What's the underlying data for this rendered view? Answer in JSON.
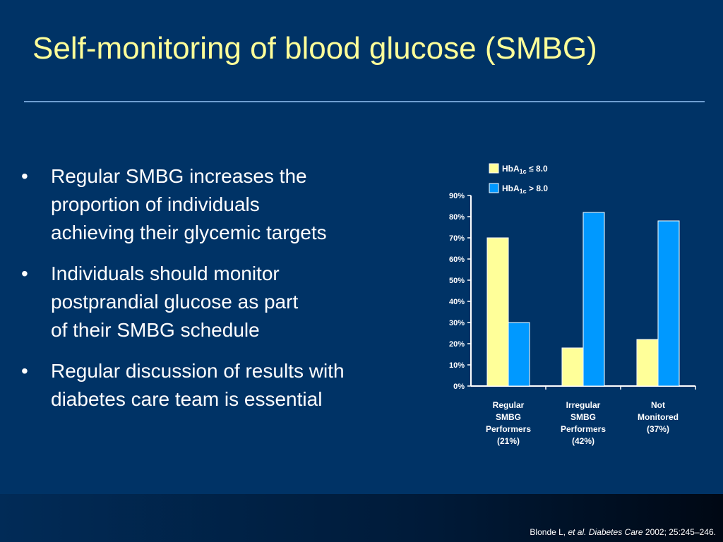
{
  "slide": {
    "title": "Self-monitoring of blood glucose (SMBG)",
    "bullets": [
      {
        "lines": [
          "Regular SMBG increases the",
          "proportion of individuals",
          "achieving their glycemic targets"
        ]
      },
      {
        "lines": [
          "Individuals should monitor",
          "postprandial glucose as part",
          "of their SMBG schedule"
        ]
      },
      {
        "lines": [
          "Regular discussion of results with",
          "diabetes care team is essential"
        ]
      }
    ],
    "bullet_glyph": "•",
    "citation": {
      "author": "Blonde L, ",
      "etal": "et al.",
      "journal": "Diabetes Care",
      "ref": "2002; 25:245–246."
    },
    "colors": {
      "background": "#003366",
      "title": "#ffff99",
      "text": "#ffffff"
    }
  },
  "chart_data": {
    "type": "bar",
    "categories": [
      [
        "Regular",
        "SMBG",
        "Performers",
        "(21%)"
      ],
      [
        "Irregular",
        "SMBG",
        "Performers",
        "(42%)"
      ],
      [
        "Not",
        "Monitored",
        "(37%)"
      ]
    ],
    "series": [
      {
        "name": "HbA1c ≤ 8.0",
        "name_base": "HbA",
        "name_sub": "1c",
        "name_rest": " ≤ 8.0",
        "color": "#ffff99",
        "values": [
          70,
          18,
          22
        ]
      },
      {
        "name": "HbA1c > 8.0",
        "name_base": "HbA",
        "name_sub": "1c",
        "name_rest": " > 8.0",
        "color": "#0099ff",
        "values": [
          30,
          82,
          78
        ]
      }
    ],
    "ylim": [
      0,
      90
    ],
    "yticks": [
      0,
      10,
      20,
      30,
      40,
      50,
      60,
      70,
      80,
      90
    ],
    "ytick_suffix": "%",
    "legend_position": "top",
    "grid": false
  }
}
